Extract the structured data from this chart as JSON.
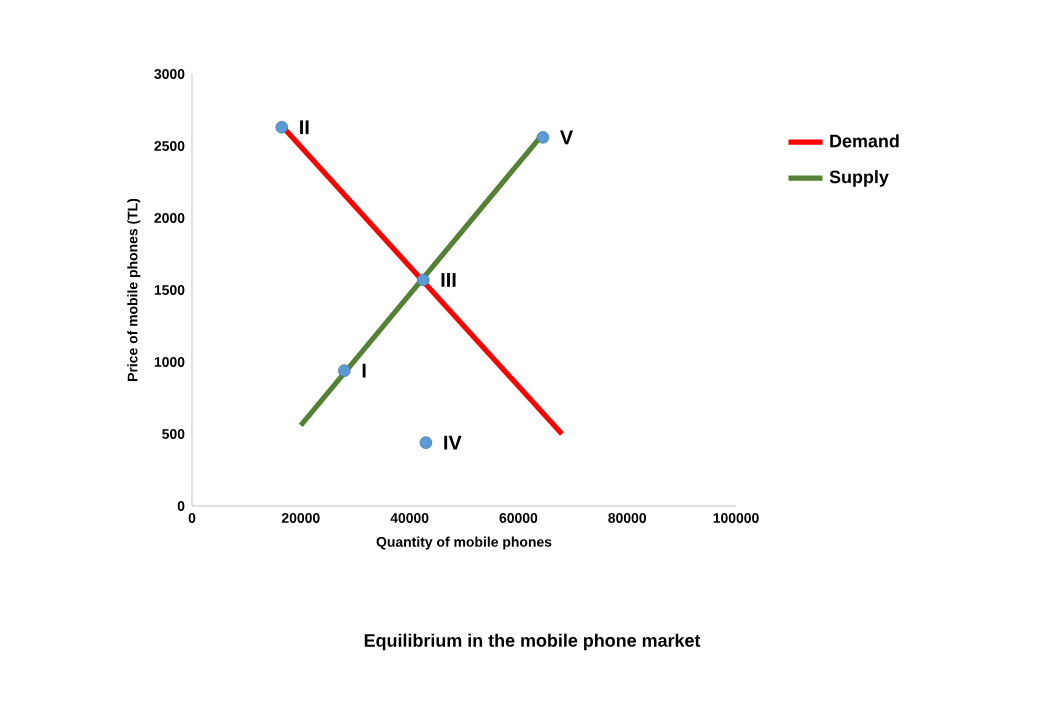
{
  "chart_data": {
    "type": "line",
    "title": "Equilibrium in the mobile phone market",
    "xlabel": "Quantity of mobile phones",
    "ylabel": "Price of mobile phones  (TL)",
    "series": [
      {
        "name": "Demand",
        "color": "#ff0000",
        "x": [
          17000,
          68000
        ],
        "values": [
          2620,
          500
        ]
      },
      {
        "name": "Supply",
        "color": "#548235",
        "x": [
          20000,
          64000
        ],
        "values": [
          560,
          2560
        ]
      },
      {
        "type": "scatter",
        "color": "#5b9bd5",
        "x": [
          28000,
          16500,
          42500,
          43000,
          64500
        ],
        "values": [
          940,
          2630,
          1570,
          440,
          2560
        ]
      }
    ],
    "annotations": [
      {
        "text": "I",
        "x": 28000,
        "y": 940
      },
      {
        "text": "II",
        "x": 16500,
        "y": 2630
      },
      {
        "text": "III",
        "x": 42500,
        "y": 1570
      },
      {
        "text": "IV",
        "x": 43000,
        "y": 440
      },
      {
        "text": "V",
        "x": 64500,
        "y": 2560
      }
    ],
    "xlim": [
      0,
      100000
    ],
    "ylim": [
      0,
      3000
    ],
    "xticks": [
      0,
      20000,
      40000,
      60000,
      80000,
      100000
    ],
    "yticks": [
      0,
      500,
      1000,
      1500,
      2000,
      2500,
      3000
    ],
    "legend": "right",
    "line_style": "solid",
    "grid": false
  }
}
